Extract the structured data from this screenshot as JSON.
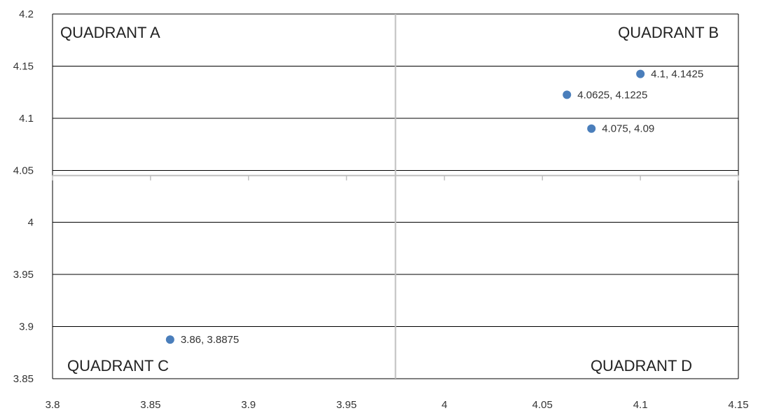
{
  "chart_data": {
    "type": "scatter",
    "xlim": [
      3.8,
      4.15
    ],
    "ylim": [
      3.85,
      4.2
    ],
    "x_ticks": [
      "3.8",
      "3.85",
      "3.9",
      "3.95",
      "4",
      "4.05",
      "4.1",
      "4.15"
    ],
    "y_ticks": [
      "3.85",
      "3.9",
      "3.95",
      "4",
      "4.05",
      "4.1",
      "4.15",
      "4.2"
    ],
    "grid": true,
    "quadrant_divider": {
      "x": 3.975,
      "y": 4.045
    },
    "quadrant_labels": {
      "a": "QUADRANT A",
      "b": "QUADRANT B",
      "c": "QUADRANT C",
      "d": "QUADRANT D"
    },
    "points": [
      {
        "x": 4.1,
        "y": 4.1425,
        "label": "4.1, 4.1425"
      },
      {
        "x": 4.0625,
        "y": 4.1225,
        "label": "4.0625, 4.1225"
      },
      {
        "x": 4.075,
        "y": 4.09,
        "label": "4.075, 4.09"
      },
      {
        "x": 3.86,
        "y": 3.8875,
        "label": "3.86, 3.8875"
      }
    ],
    "marker_color": "#4a7ebb",
    "gridline_color": "#000000",
    "divider_color": "#bfbfbf"
  }
}
